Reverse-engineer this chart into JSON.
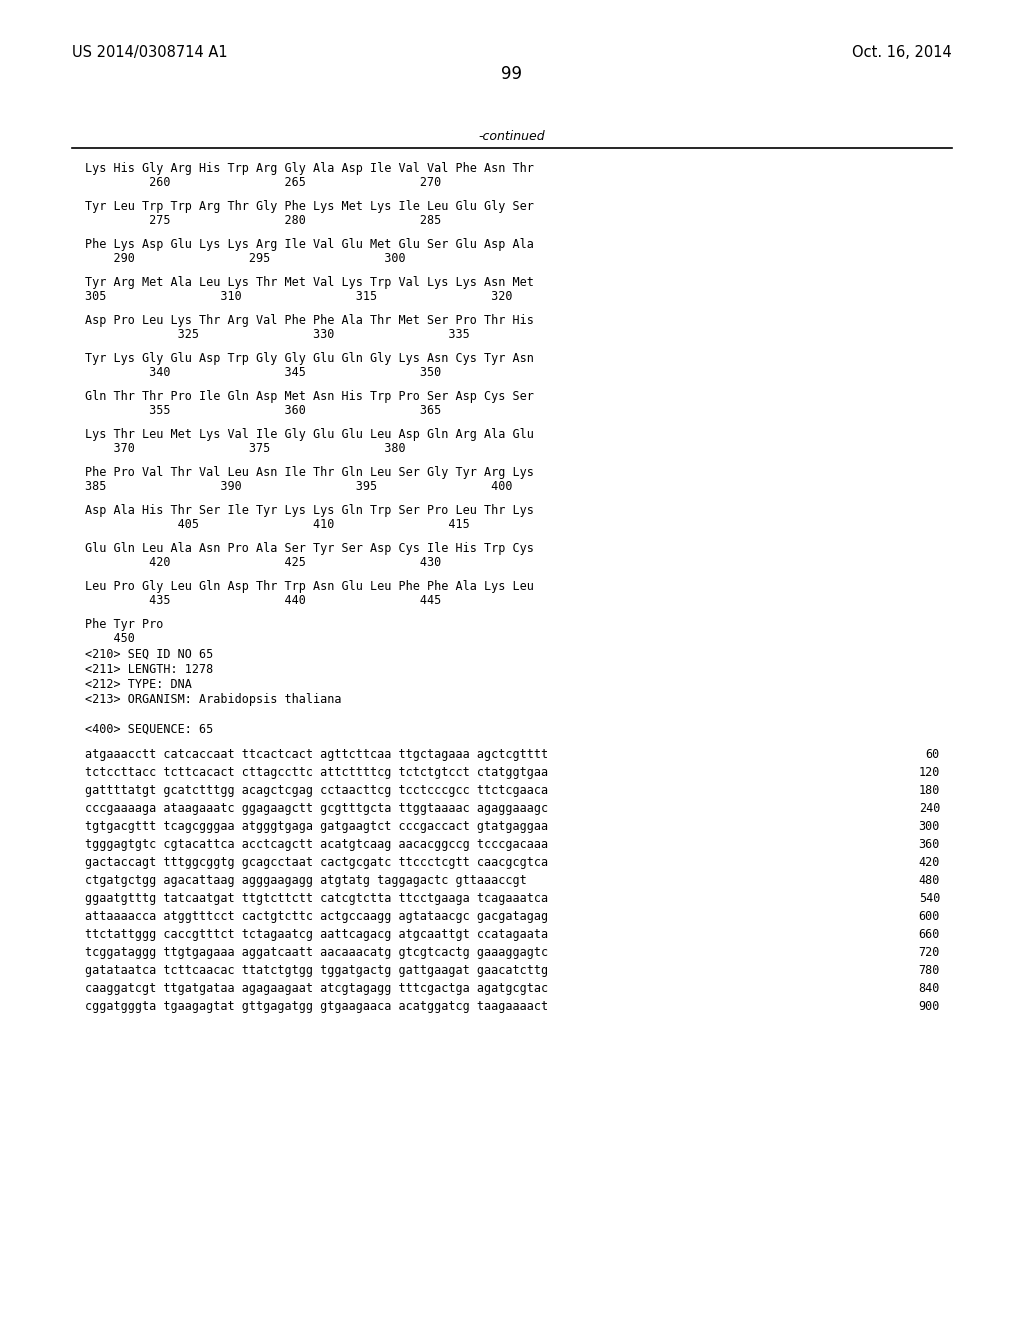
{
  "header_left": "US 2014/0308714 A1",
  "header_right": "Oct. 16, 2014",
  "page_number": "99",
  "continued_label": "-continued",
  "background_color": "#ffffff",
  "text_color": "#000000",
  "font_size_header": 10.5,
  "font_size_page": 12,
  "font_size_body": 8.5,
  "font_size_continued": 9,
  "sequence_lines": [
    {
      "text": "Lys His Gly Arg His Trp Arg Gly Ala Asp Ile Val Val Phe Asn Thr",
      "nums": "260                265                270",
      "num_indent": "         "
    },
    {
      "text": "Tyr Leu Trp Trp Arg Thr Gly Phe Lys Met Lys Ile Leu Glu Gly Ser",
      "nums": "275                280                285",
      "num_indent": "         "
    },
    {
      "text": "Phe Lys Asp Glu Lys Lys Arg Ile Val Glu Met Glu Ser Glu Asp Ala",
      "nums": "290                295                300",
      "num_indent": "    "
    },
    {
      "text": "Tyr Arg Met Ala Leu Lys Thr Met Val Lys Trp Val Lys Lys Asn Met",
      "nums": "305                310                315                320",
      "num_indent": ""
    },
    {
      "text": "Asp Pro Leu Lys Thr Arg Val Phe Phe Ala Thr Met Ser Pro Thr His",
      "nums": "             325                330                335",
      "num_indent": ""
    },
    {
      "text": "Tyr Lys Gly Glu Asp Trp Gly Gly Glu Gln Gly Lys Asn Cys Tyr Asn",
      "nums": "         340                345                350",
      "num_indent": ""
    },
    {
      "text": "Gln Thr Thr Pro Ile Gln Asp Met Asn His Trp Pro Ser Asp Cys Ser",
      "nums": "         355                360                365",
      "num_indent": ""
    },
    {
      "text": "Lys Thr Leu Met Lys Val Ile Gly Glu Glu Leu Asp Gln Arg Ala Glu",
      "nums": "    370                375                380",
      "num_indent": ""
    },
    {
      "text": "Phe Pro Val Thr Val Leu Asn Ile Thr Gln Leu Ser Gly Tyr Arg Lys",
      "nums": "385                390                395                400",
      "num_indent": ""
    },
    {
      "text": "Asp Ala His Thr Ser Ile Tyr Lys Lys Gln Trp Ser Pro Leu Thr Lys",
      "nums": "             405                410                415",
      "num_indent": ""
    },
    {
      "text": "Glu Gln Leu Ala Asn Pro Ala Ser Tyr Ser Asp Cys Ile His Trp Cys",
      "nums": "         420                425                430",
      "num_indent": ""
    },
    {
      "text": "Leu Pro Gly Leu Gln Asp Thr Trp Asn Glu Leu Phe Phe Ala Lys Leu",
      "nums": "         435                440                445",
      "num_indent": ""
    },
    {
      "text": "Phe Tyr Pro",
      "nums": "    450",
      "num_indent": ""
    }
  ],
  "metadata_lines": [
    "<210> SEQ ID NO 65",
    "<211> LENGTH: 1278",
    "<212> TYPE: DNA",
    "<213> ORGANISM: Arabidopsis thaliana",
    "",
    "<400> SEQUENCE: 65"
  ],
  "dna_lines": [
    {
      "seq": "atgaaacctt catcaccaat ttcactcact agttcttcaa ttgctagaaa agctcgtttt",
      "num": "60"
    },
    {
      "seq": "tctccttacc tcttcacact cttagccttc attcttttcg tctctgtcct ctatggtgaa",
      "num": "120"
    },
    {
      "seq": "gattttatgt gcatctttgg acagctcgag cctaacttcg tcctcccgcc ttctcgaaca",
      "num": "180"
    },
    {
      "seq": "cccgaaaaga ataagaaatc ggagaagctt gcgtttgcta ttggtaaaac agaggaaagc",
      "num": "240"
    },
    {
      "seq": "tgtgacgttt tcagcgggaa atgggtgaga gatgaagtct cccgaccact gtatgaggaa",
      "num": "300"
    },
    {
      "seq": "tgggagtgtc cgtacattca acctcagctt acatgtcaag aacacggccg tcccgacaaa",
      "num": "360"
    },
    {
      "seq": "gactaccagt tttggcggtg gcagcctaat cactgcgatc ttccctcgtt caacgcgtca",
      "num": "420"
    },
    {
      "seq": "ctgatgctgg agacattaag agggaagagg atgtatg taggagactc gttaaaccgt",
      "num": "480"
    },
    {
      "seq": "ggaatgtttg tatcaatgat ttgtcttctt catcgtctta ttcctgaaga tcagaaatca",
      "num": "540"
    },
    {
      "seq": "attaaaacca atggtttcct cactgtcttc actgccaagg agtataacgc gacgatagag",
      "num": "600"
    },
    {
      "seq": "ttctattggg caccgtttct tctagaatcg aattcagacg atgcaattgt ccatagaata",
      "num": "660"
    },
    {
      "seq": "tcggataggg ttgtgagaaa aggatcaatt aacaaacatg gtcgtcactg gaaaggagtc",
      "num": "720"
    },
    {
      "seq": "gatataatca tcttcaacac ttatctgtgg tggatgactg gattgaagat gaacatcttg",
      "num": "780"
    },
    {
      "seq": "caaggatcgt ttgatgataa agagaagaat atcgtagagg tttcgactga agatgcgtac",
      "num": "840"
    },
    {
      "seq": "cggatgggta tgaagagtat gttgagatgg gtgaagaaca acatggatcg taagaaaact",
      "num": "900"
    }
  ]
}
